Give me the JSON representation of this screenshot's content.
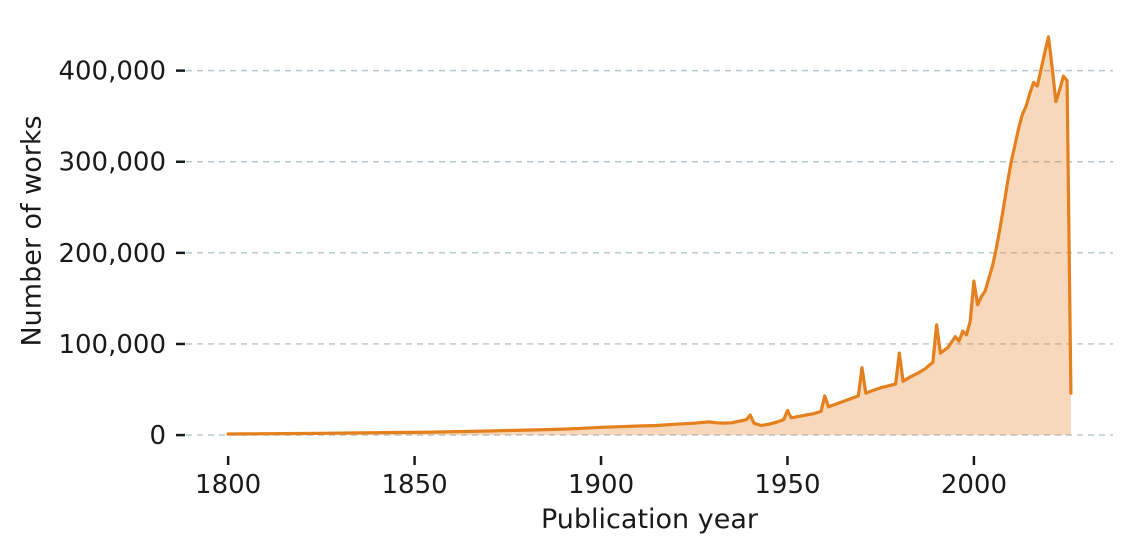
{
  "chart_data": {
    "type": "area",
    "xlabel": "Publication year",
    "ylabel": "Number of works",
    "x_tick_values": [
      1800,
      1850,
      1900,
      1950,
      2000
    ],
    "x_tick_labels": [
      "1800",
      "1850",
      "1900",
      "1950",
      "2000"
    ],
    "y_tick_values": [
      0,
      100000,
      200000,
      300000,
      400000
    ],
    "y_tick_labels": [
      "0",
      "100,000",
      "200,000",
      "300,000",
      "400,000"
    ],
    "xlim": [
      1788.7,
      2037.3
    ],
    "ylim": [
      -21850,
      458850
    ],
    "grid": "horizontal-dashed",
    "legend": "none",
    "colors": {
      "line": "#e5801f",
      "fill": "rgba(230,127,30,0.3)",
      "grid": "#b5c6d2",
      "tick": "#1a1a1a",
      "text": "#1a1a1a",
      "background": "#ffffff"
    },
    "series": [
      {
        "name": "Number of works",
        "points": [
          [
            1800,
            1200
          ],
          [
            1805,
            1300
          ],
          [
            1810,
            1500
          ],
          [
            1815,
            1600
          ],
          [
            1820,
            1800
          ],
          [
            1825,
            2000
          ],
          [
            1830,
            2200
          ],
          [
            1835,
            2400
          ],
          [
            1840,
            2600
          ],
          [
            1845,
            2800
          ],
          [
            1850,
            3000
          ],
          [
            1855,
            3300
          ],
          [
            1860,
            3700
          ],
          [
            1865,
            4100
          ],
          [
            1870,
            4500
          ],
          [
            1875,
            5000
          ],
          [
            1880,
            5500
          ],
          [
            1885,
            6000
          ],
          [
            1890,
            6600
          ],
          [
            1895,
            7500
          ],
          [
            1900,
            8500
          ],
          [
            1905,
            9200
          ],
          [
            1910,
            10000
          ],
          [
            1915,
            10500
          ],
          [
            1920,
            12000
          ],
          [
            1925,
            13000
          ],
          [
            1929,
            14500
          ],
          [
            1931,
            13500
          ],
          [
            1933,
            13200
          ],
          [
            1935,
            13500
          ],
          [
            1938,
            16000
          ],
          [
            1939,
            17000
          ],
          [
            1940,
            22000
          ],
          [
            1941,
            13000
          ],
          [
            1943,
            10500
          ],
          [
            1945,
            12000
          ],
          [
            1947,
            14000
          ],
          [
            1949,
            17000
          ],
          [
            1950,
            27000
          ],
          [
            1951,
            19000
          ],
          [
            1953,
            20500
          ],
          [
            1955,
            22000
          ],
          [
            1957,
            23500
          ],
          [
            1959,
            26000
          ],
          [
            1960,
            43000
          ],
          [
            1961,
            31000
          ],
          [
            1963,
            34000
          ],
          [
            1965,
            37000
          ],
          [
            1967,
            40000
          ],
          [
            1969,
            43000
          ],
          [
            1970,
            74000
          ],
          [
            1971,
            46000
          ],
          [
            1973,
            49000
          ],
          [
            1975,
            52000
          ],
          [
            1977,
            54000
          ],
          [
            1979,
            56000
          ],
          [
            1980,
            90000
          ],
          [
            1981,
            59000
          ],
          [
            1983,
            64000
          ],
          [
            1985,
            68000
          ],
          [
            1987,
            73000
          ],
          [
            1989,
            80000
          ],
          [
            1990,
            121000
          ],
          [
            1991,
            90000
          ],
          [
            1993,
            96000
          ],
          [
            1995,
            108000
          ],
          [
            1996,
            103000
          ],
          [
            1997,
            114000
          ],
          [
            1998,
            110000
          ],
          [
            1999,
            125000
          ],
          [
            2000,
            169000
          ],
          [
            2001,
            143000
          ],
          [
            2002,
            152000
          ],
          [
            2003,
            158000
          ],
          [
            2004,
            172000
          ],
          [
            2005,
            186000
          ],
          [
            2006,
            205000
          ],
          [
            2007,
            227000
          ],
          [
            2008,
            251000
          ],
          [
            2009,
            277000
          ],
          [
            2010,
            300000
          ],
          [
            2011,
            318000
          ],
          [
            2012,
            337000
          ],
          [
            2013,
            352000
          ],
          [
            2014,
            361000
          ],
          [
            2015,
            375000
          ],
          [
            2016,
            387000
          ],
          [
            2017,
            383000
          ],
          [
            2018,
            401000
          ],
          [
            2019,
            420000
          ],
          [
            2020,
            437000
          ],
          [
            2021,
            403000
          ],
          [
            2022,
            366000
          ],
          [
            2023,
            379000
          ],
          [
            2024,
            394000
          ],
          [
            2025,
            389000
          ],
          [
            2026,
            46000
          ]
        ]
      }
    ]
  }
}
